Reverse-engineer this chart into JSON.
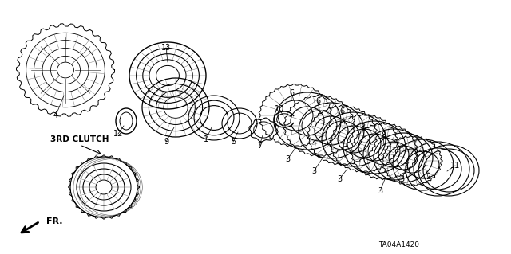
{
  "background_color": "#ffffff",
  "diagram_code": "TA04A1420",
  "label_3rd_clutch": "3RD CLUTCH",
  "label_fr": "FR.",
  "fig_width": 6.4,
  "fig_height": 3.19,
  "dpi": 100
}
